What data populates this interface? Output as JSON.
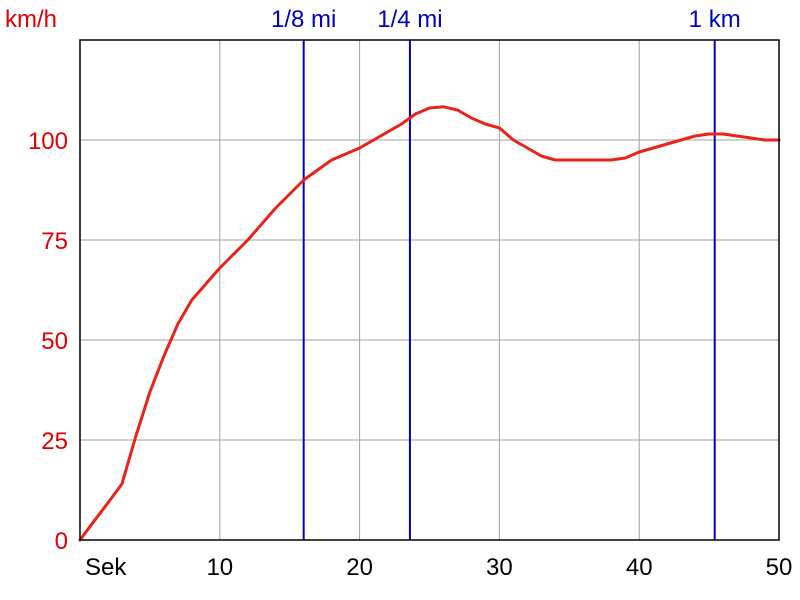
{
  "chart_data": {
    "type": "line",
    "title": "",
    "ylabel": "km/h",
    "xlabel": "Sek",
    "xlim": [
      0,
      50
    ],
    "ylim": [
      0,
      125
    ],
    "x_ticks": [
      10,
      20,
      30,
      40,
      50
    ],
    "y_ticks": [
      0,
      25,
      50,
      75,
      100
    ],
    "grid": true,
    "series": [
      {
        "color": "#e8231a",
        "x": [
          0,
          1,
          2,
          3,
          3.5,
          4,
          5,
          6,
          7,
          8,
          9,
          10,
          12,
          14,
          16,
          18,
          20,
          21,
          22,
          23,
          24,
          25,
          26,
          27,
          28,
          29,
          30,
          31,
          32,
          33,
          34,
          35,
          36,
          37,
          38,
          39,
          40,
          41,
          42,
          43,
          44,
          45,
          46,
          47,
          48,
          49,
          50
        ],
        "y": [
          0,
          4.7,
          9.3,
          14,
          20,
          26,
          37,
          46,
          54,
          60,
          64,
          68,
          75,
          83,
          90,
          95,
          98,
          100,
          102,
          104,
          106.5,
          108,
          108.3,
          107.5,
          105.5,
          104,
          103,
          100,
          98,
          96,
          95,
          95,
          95,
          95,
          95,
          95.5,
          97,
          98,
          99,
          100,
          101,
          101.5,
          101.5,
          101,
          100.5,
          100,
          100
        ]
      }
    ],
    "markers": [
      {
        "label": "1/8 mi",
        "x": 16,
        "color": "#0000c0"
      },
      {
        "label": "1/4 mi",
        "x": 23.6,
        "color": "#0000c0"
      },
      {
        "label": "1 km",
        "x": 45.4,
        "color": "#0000c0"
      }
    ]
  }
}
